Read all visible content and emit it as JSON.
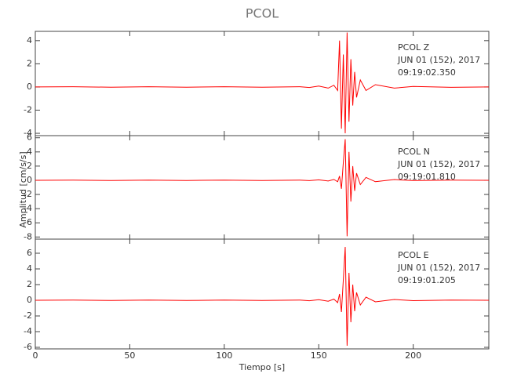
{
  "chart_data": [
    {
      "type": "line",
      "title": "PCOL",
      "annotations": [
        "PCOL  Z",
        "JUN 01 (152), 2017",
        "09:19:02.350"
      ],
      "x": [
        0,
        20,
        40,
        60,
        80,
        100,
        120,
        140,
        145,
        150,
        155,
        158,
        160,
        161,
        162,
        163,
        164,
        165,
        166,
        167,
        168,
        169,
        170,
        172,
        175,
        180,
        190,
        200,
        220,
        240
      ],
      "values": [
        0,
        0.02,
        -0.02,
        0.02,
        -0.02,
        0.02,
        -0.02,
        0.02,
        -0.05,
        0.08,
        -0.1,
        0.15,
        -0.3,
        4.0,
        -3.6,
        2.8,
        -4.0,
        4.7,
        -3.0,
        2.4,
        -1.6,
        1.3,
        -0.9,
        0.6,
        -0.3,
        0.2,
        -0.1,
        0.05,
        -0.03,
        0
      ],
      "color": "#ff0000",
      "xlim": [
        0,
        240
      ],
      "xticks": [
        0,
        50,
        100,
        150,
        200
      ],
      "ylim": [
        -4.2,
        4.8
      ],
      "yticks": [
        -4,
        -2,
        0,
        2,
        4
      ]
    },
    {
      "type": "line",
      "ylabel": "Amplitud [cm/s/s]",
      "annotations": [
        "PCOL  N",
        "JUN 01 (152), 2017",
        "09:19:01.810"
      ],
      "x": [
        0,
        20,
        40,
        60,
        80,
        100,
        120,
        140,
        145,
        150,
        155,
        158,
        160,
        161,
        162,
        163,
        164,
        165,
        166,
        167,
        168,
        169,
        170,
        172,
        175,
        180,
        190,
        200,
        220,
        240
      ],
      "values": [
        0,
        0.03,
        -0.03,
        0.03,
        -0.03,
        0.03,
        -0.03,
        0.03,
        -0.05,
        0.06,
        -0.1,
        0.12,
        -0.2,
        0.6,
        -1.2,
        2.5,
        5.8,
        -7.9,
        4.0,
        -3.0,
        2.0,
        -1.5,
        1.0,
        -0.6,
        0.4,
        -0.2,
        0.1,
        -0.05,
        0.03,
        0
      ],
      "color": "#ff0000",
      "xlim": [
        0,
        240
      ],
      "xticks": [
        0,
        50,
        100,
        150,
        200
      ],
      "ylim": [
        -8.3,
        6.3
      ],
      "yticks": [
        -8,
        -6,
        -4,
        -2,
        0,
        2,
        4,
        6
      ]
    },
    {
      "type": "line",
      "xlabel": "Tiempo [s]",
      "annotations": [
        "PCOL  E",
        "JUN 01 (152), 2017",
        "09:19:01.205"
      ],
      "x": [
        0,
        20,
        40,
        60,
        80,
        100,
        120,
        140,
        145,
        150,
        155,
        158,
        160,
        161,
        162,
        163,
        164,
        165,
        166,
        167,
        168,
        169,
        170,
        172,
        175,
        180,
        190,
        200,
        220,
        240
      ],
      "values": [
        0,
        0.03,
        -0.03,
        0.03,
        -0.03,
        0.03,
        -0.03,
        0.03,
        -0.06,
        0.08,
        -0.12,
        0.15,
        -0.3,
        0.8,
        -1.5,
        2.6,
        6.8,
        -5.8,
        3.5,
        -2.8,
        2.0,
        -1.4,
        1.0,
        -0.6,
        0.4,
        -0.2,
        0.1,
        -0.05,
        0.03,
        0
      ],
      "color": "#ff0000",
      "xlim": [
        0,
        240
      ],
      "xticks": [
        0,
        50,
        100,
        150,
        200
      ],
      "ylim": [
        -6.2,
        7.8
      ],
      "yticks": [
        -6,
        -4,
        -2,
        0,
        2,
        4,
        6
      ]
    }
  ]
}
